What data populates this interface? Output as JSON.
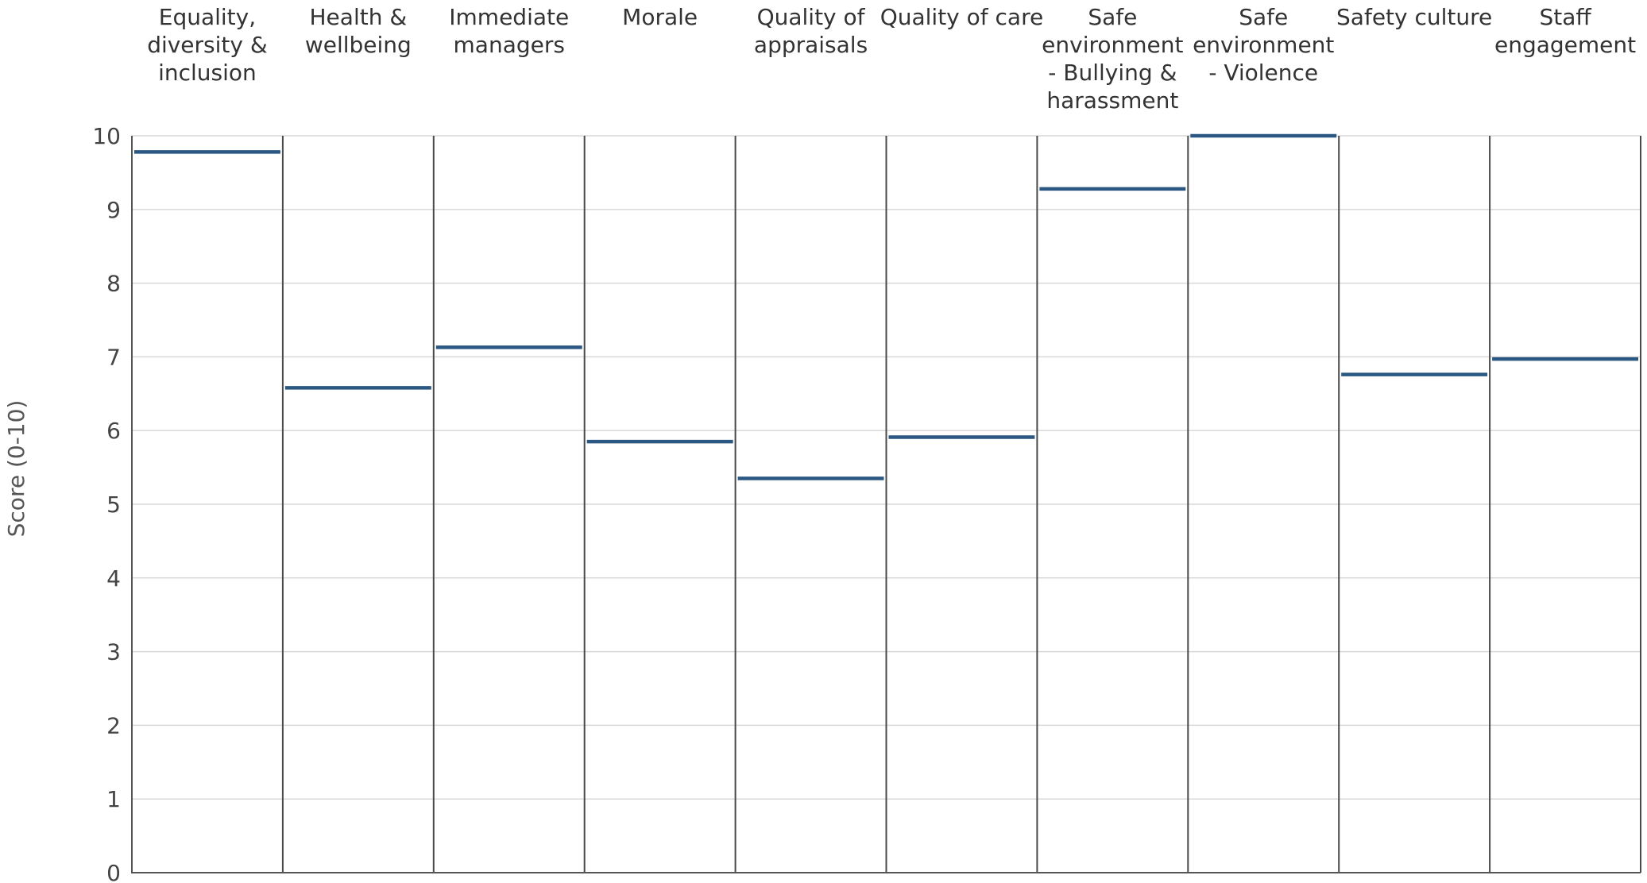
{
  "chart_data": {
    "type": "line",
    "categories": [
      "Equality, diversity & inclusion",
      "Health & wellbeing",
      "Immediate managers",
      "Morale",
      "Quality of appraisals",
      "Quality of care",
      "Safe environment - Bullying & harassment",
      "Safe environment - Violence",
      "Safety culture",
      "Staff engagement"
    ],
    "category_label_lines": [
      [
        "Equality,",
        "diversity &",
        "inclusion"
      ],
      [
        "Health &",
        "wellbeing"
      ],
      [
        "Immediate",
        "managers"
      ],
      [
        "Morale"
      ],
      [
        "Quality of",
        "appraisals"
      ],
      [
        "Quality of care"
      ],
      [
        "Safe",
        "environment",
        "- Bullying &",
        "harassment"
      ],
      [
        "Safe",
        "environment",
        "- Violence"
      ],
      [
        "Safety culture"
      ],
      [
        "Staff",
        "engagement"
      ]
    ],
    "values": [
      9.78,
      6.58,
      7.13,
      5.85,
      5.35,
      5.91,
      9.28,
      10.0,
      6.76,
      6.97
    ],
    "ylabel": "Score (0-10)",
    "xlabel": "",
    "ylim": [
      0,
      10
    ],
    "yticks": [
      "0",
      "1",
      "2",
      "3",
      "4",
      "5",
      "6",
      "7",
      "8",
      "9",
      "10"
    ],
    "grid": true,
    "colors": {
      "series": "#2b5783",
      "grid": "#d9d9d9",
      "divider": "#4a4a4a",
      "axis": "#555555"
    }
  }
}
